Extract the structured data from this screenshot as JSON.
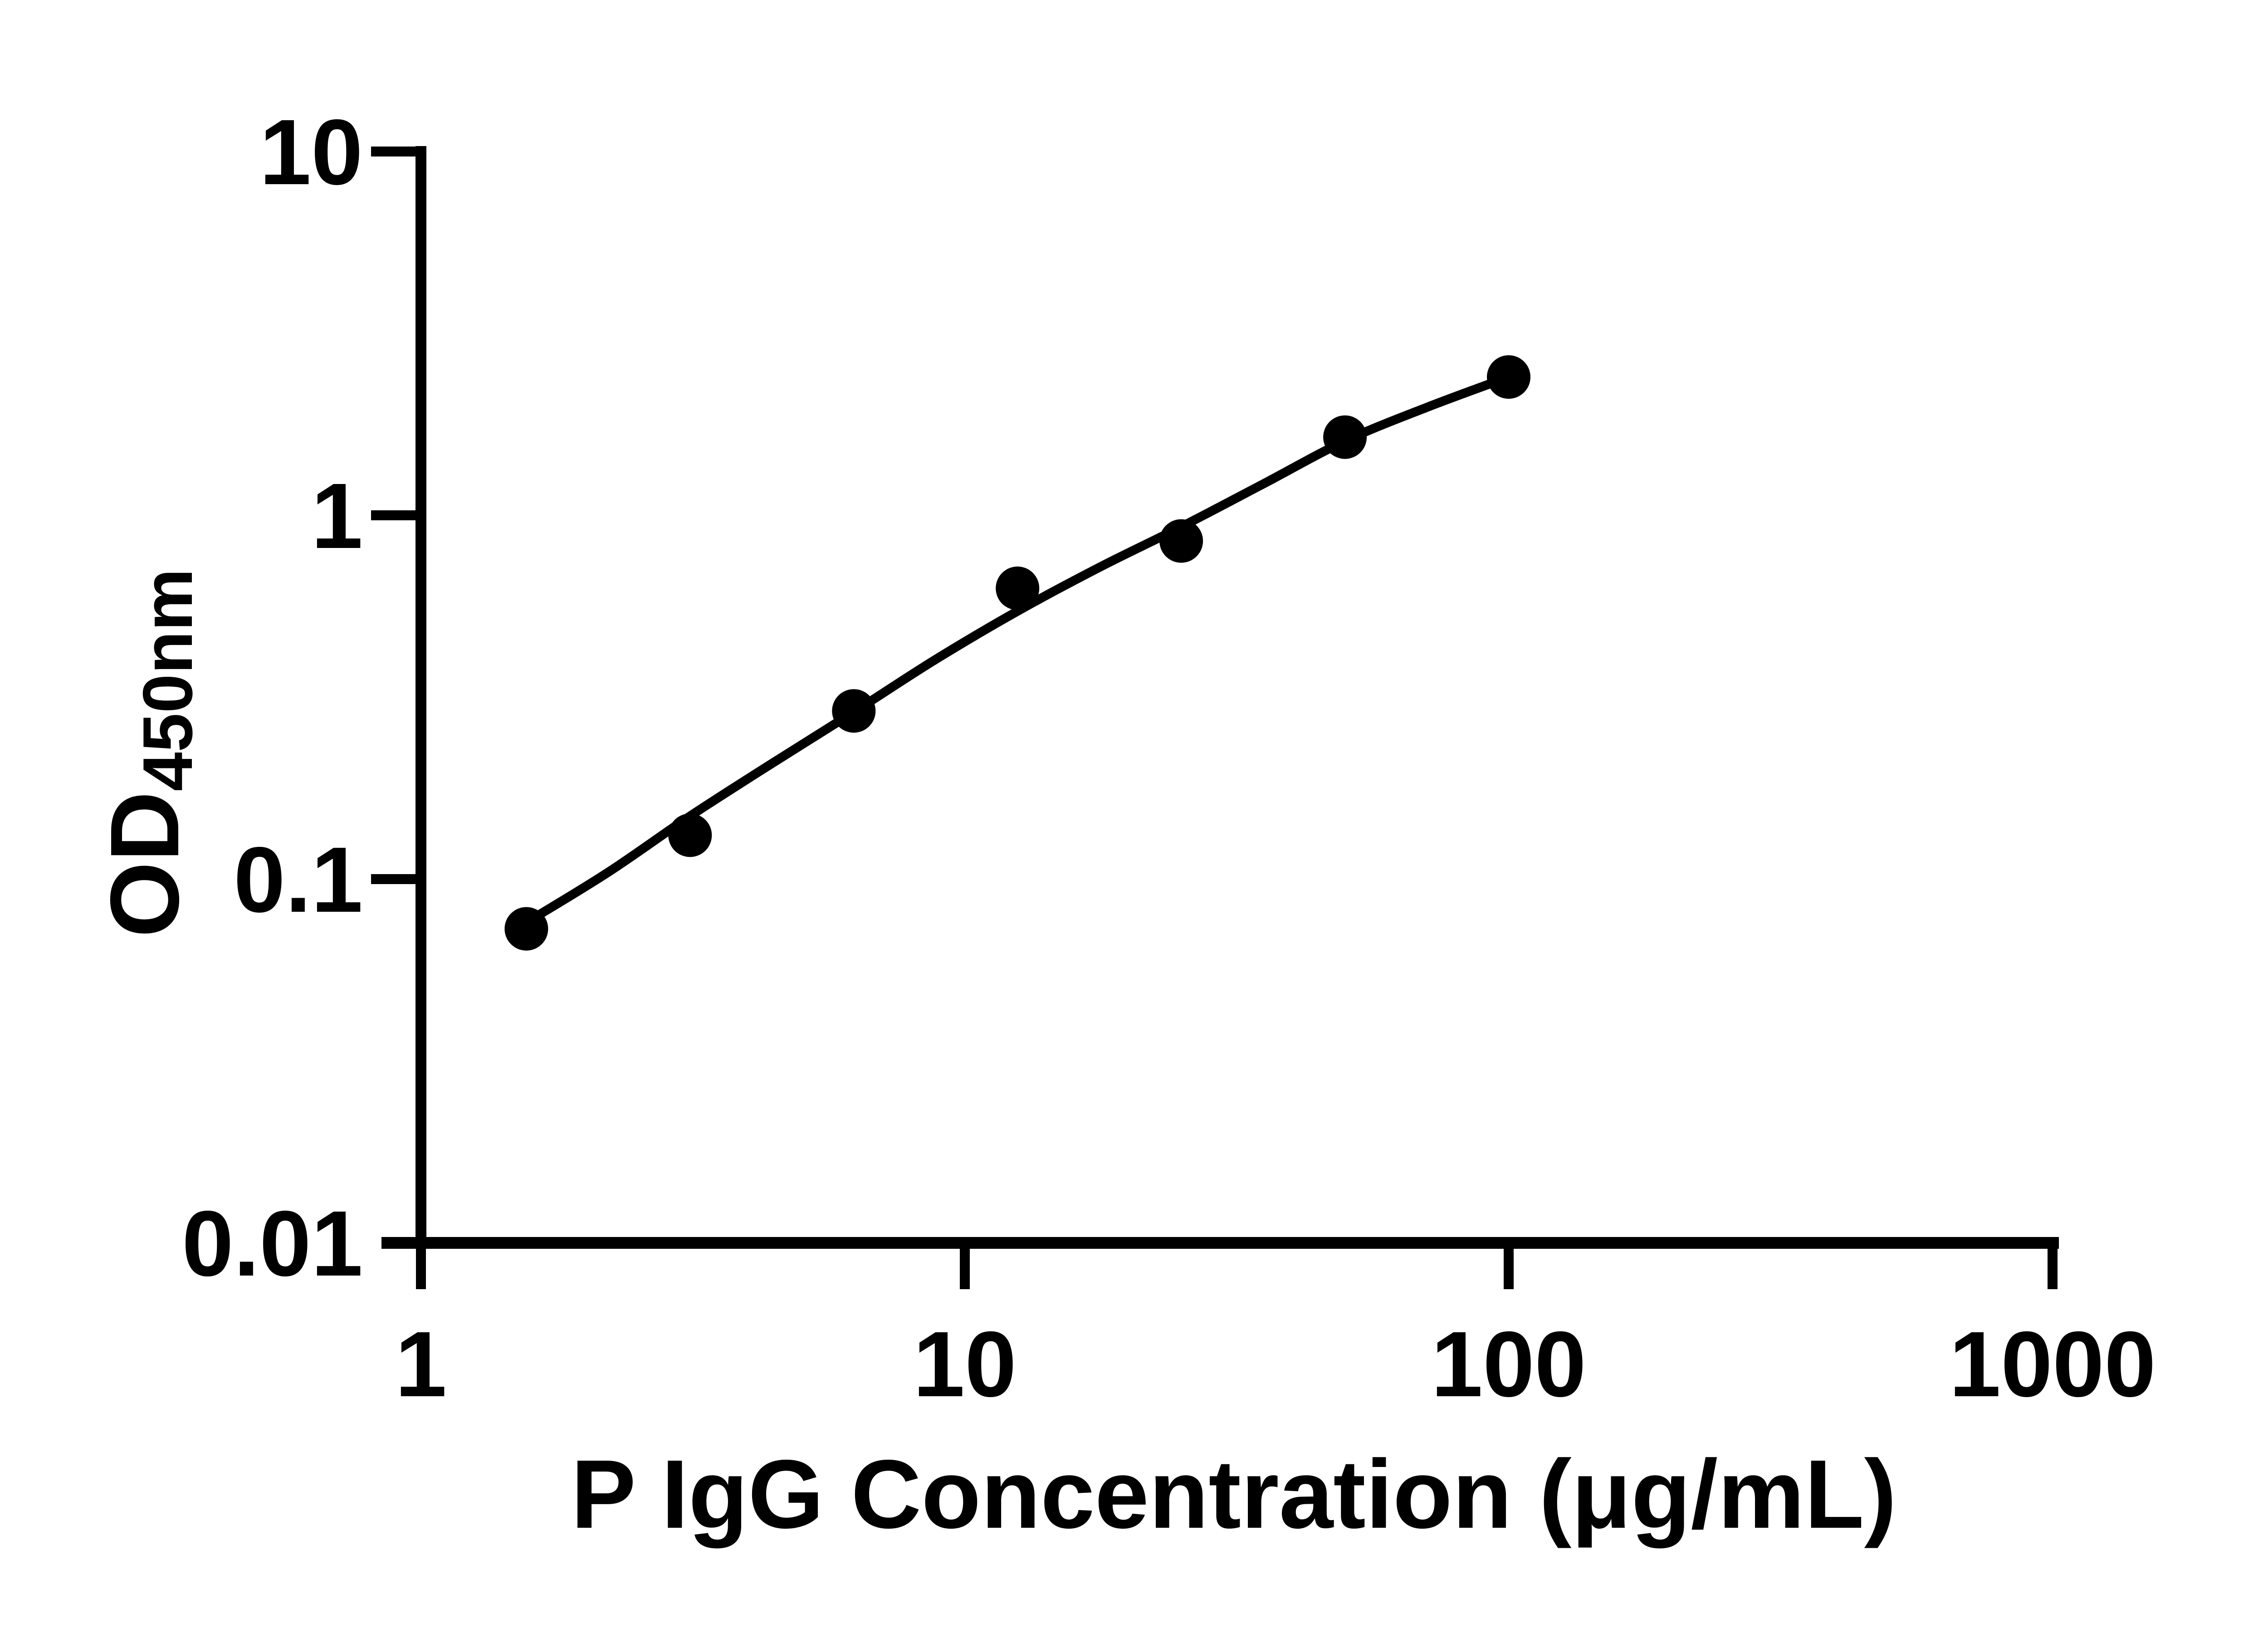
{
  "chart_data": {
    "type": "scatter",
    "title": "",
    "xlabel": "P IgG Concentration (μg/mL)",
    "ylabel": "OD",
    "ylabel_subscript": "450nm",
    "x_scale": "log10",
    "y_scale": "log10",
    "xlim": [
      1,
      1000
    ],
    "ylim": [
      0.01,
      10
    ],
    "x_tick_values": [
      1,
      10,
      100,
      1000
    ],
    "x_tick_labels": [
      "1",
      "10",
      "100",
      "1000"
    ],
    "y_tick_values": [
      10,
      1,
      0.1,
      0.01
    ],
    "y_tick_labels": [
      "10",
      "1",
      "0.1",
      "0.01"
    ],
    "grid": false,
    "legend": "none",
    "marker": {
      "shape": "filled-circle",
      "color": "#000000",
      "radius_px": 48
    },
    "points": [
      {
        "x": 1.5625,
        "y": 0.073
      },
      {
        "x": 3.125,
        "y": 0.132
      },
      {
        "x": 6.25,
        "y": 0.29
      },
      {
        "x": 12.5,
        "y": 0.63
      },
      {
        "x": 25,
        "y": 0.85
      },
      {
        "x": 50,
        "y": 1.64
      },
      {
        "x": 100,
        "y": 2.4
      }
    ],
    "fit_curve": [
      [
        1.5625,
        0.076
      ],
      [
        2.2,
        0.104
      ],
      [
        3.125,
        0.149
      ],
      [
        4.4,
        0.207
      ],
      [
        6.25,
        0.288
      ],
      [
        8.8,
        0.4
      ],
      [
        12.5,
        0.545
      ],
      [
        17.7,
        0.72
      ],
      [
        25,
        0.93
      ],
      [
        35.4,
        1.22
      ],
      [
        50,
        1.6
      ],
      [
        70.7,
        1.98
      ],
      [
        100,
        2.4
      ]
    ],
    "colors": {
      "axis": "#000000",
      "curve": "#000000",
      "marker": "#000000",
      "background": "#ffffff"
    }
  }
}
